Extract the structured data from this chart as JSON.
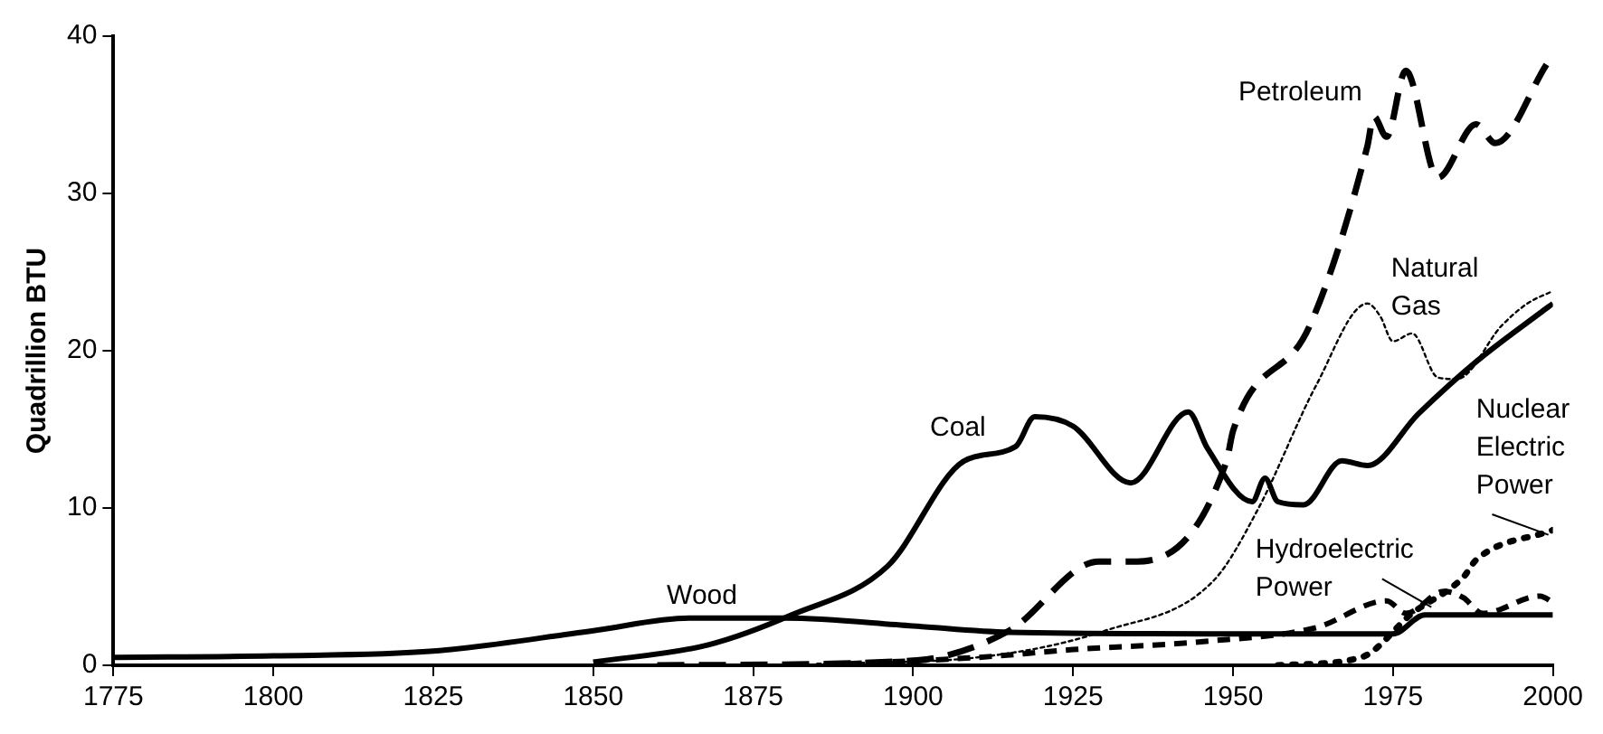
{
  "chart_data": {
    "type": "line",
    "ylabel": "Quadrillion BTU",
    "xlim": [
      1775,
      2000
    ],
    "xticks": [
      1775,
      1800,
      1825,
      1850,
      1875,
      1900,
      1925,
      1950,
      1975,
      2000
    ],
    "ylim": [
      0,
      40
    ],
    "yticks": [
      0,
      10,
      20,
      30,
      40
    ],
    "grid": false,
    "legend": false,
    "marker": "none",
    "series": [
      {
        "name": "Wood",
        "color": "#000000",
        "line_style": "solid",
        "x": [
          1775,
          1800,
          1825,
          1850,
          1865,
          1880,
          1900,
          1915,
          1950,
          1975,
          1980,
          2000
        ],
        "values": [
          0.5,
          0.6,
          0.9,
          2.2,
          3.0,
          3.0,
          2.5,
          2.1,
          2.0,
          2.0,
          3.2,
          3.2
        ]
      },
      {
        "name": "Coal",
        "color": "#000000",
        "line_style": "solid",
        "x": [
          1850,
          1868,
          1881,
          1896,
          1908,
          1916,
          1919,
          1925,
          1934,
          1943,
          1946,
          1953,
          1955,
          1957,
          1961,
          1967,
          1971,
          1979,
          1988,
          1998,
          2000
        ],
        "values": [
          0.2,
          1.3,
          3.2,
          6.3,
          13.0,
          13.9,
          15.8,
          15.2,
          11.6,
          16.1,
          13.8,
          10.4,
          11.9,
          10.4,
          10.2,
          13.0,
          12.7,
          16.0,
          19.3,
          22.4,
          23.0
        ]
      },
      {
        "name": "Petroleum",
        "color": "#000000",
        "line_style": "dashed",
        "x": [
          1860,
          1900,
          1915,
          1929,
          1935,
          1949,
          1950,
          1962,
          1971,
          1972,
          1974,
          1977,
          1982,
          1988,
          1991,
          1999
        ],
        "values": [
          0,
          0.3,
          2.2,
          6.6,
          6.6,
          13.0,
          14.9,
          21.6,
          33.0,
          34.9,
          33.6,
          37.8,
          31.0,
          34.4,
          33.2,
          38.2
        ]
      },
      {
        "name": "Natural Gas",
        "color": "#000000",
        "line_style": "dotted",
        "x": [
          1885,
          1910,
          1930,
          1947,
          1954,
          1963,
          1971,
          1973,
          1975,
          1978,
          1982,
          1985,
          1992,
          1996,
          2000
        ],
        "values": [
          0.1,
          0.5,
          2.2,
          5.4,
          10.0,
          17.8,
          23.0,
          22.2,
          20.6,
          21.1,
          18.3,
          18.2,
          21.6,
          23.0,
          23.8
        ]
      },
      {
        "name": "Hydroelectric Power",
        "color": "#000000",
        "line_style": "dashed",
        "x": [
          1890,
          1910,
          1925,
          1945,
          1963,
          1974,
          1977,
          1983,
          1986,
          1989,
          1998,
          2000
        ],
        "values": [
          0.1,
          0.5,
          1.0,
          1.5,
          2.4,
          4.1,
          3.3,
          4.7,
          4.3,
          3.3,
          4.4,
          4.0
        ]
      },
      {
        "name": "Nuclear Electric Power",
        "color": "#000000",
        "line_style": "dotted",
        "x": [
          1957,
          1970,
          1978,
          1986,
          1988,
          2000
        ],
        "values": [
          0,
          0.5,
          3.3,
          5.6,
          6.7,
          8.6
        ]
      }
    ]
  }
}
